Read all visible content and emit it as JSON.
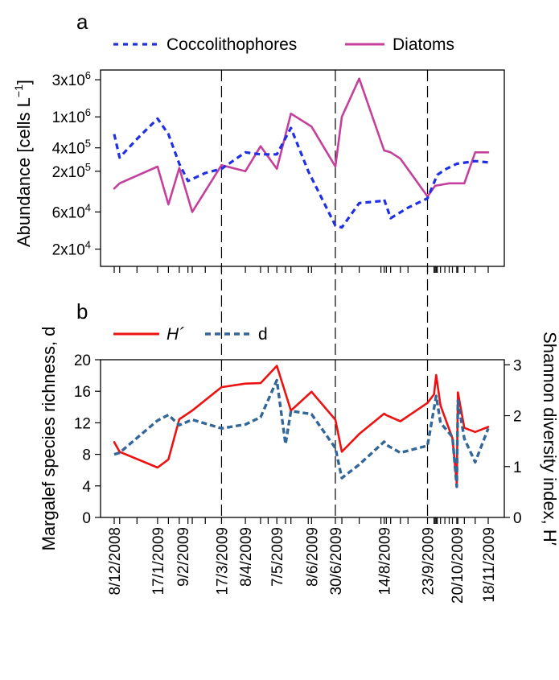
{
  "chart_data": [
    {
      "type": "line",
      "panel_label": "a",
      "ylabel": "Abundance [cells L",
      "ylabel_exponent": "−1",
      "ylabel_close": "]",
      "yscale": "log",
      "yticks": [
        {
          "value": 20000,
          "base": "2x10",
          "exp": "4"
        },
        {
          "value": 60000,
          "base": "6x10",
          "exp": "4"
        },
        {
          "value": 200000,
          "base": "2x10",
          "exp": "5"
        },
        {
          "value": 400000,
          "base": "4x10",
          "exp": "5"
        },
        {
          "value": 1000000,
          "base": "1x10",
          "exp": "6"
        },
        {
          "value": 3000000,
          "base": "3x10",
          "exp": "6"
        }
      ],
      "legend_placement": "top",
      "dashed_dates": [
        "2009-03-17",
        "2009-06-30",
        "2009-09-23"
      ],
      "series": [
        {
          "name": "Coccolithophores",
          "color": "#1f2fe6",
          "style": "dotted",
          "points": [
            [
              "2008-12-08",
              600000
            ],
            [
              "2008-12-13",
              300000
            ],
            [
              "2008-12-29",
              520000
            ],
            [
              "2009-01-17",
              950000
            ],
            [
              "2009-01-27",
              600000
            ],
            [
              "2009-02-06",
              250000
            ],
            [
              "2009-02-14",
              150000
            ],
            [
              "2009-03-02",
              190000
            ],
            [
              "2009-03-17",
              215000
            ],
            [
              "2009-04-08",
              350000
            ],
            [
              "2009-04-22",
              330000
            ],
            [
              "2009-04-29",
              330000
            ],
            [
              "2009-05-07",
              330000
            ],
            [
              "2009-05-20",
              720000
            ],
            [
              "2009-06-05",
              200000
            ],
            [
              "2009-06-30",
              40000
            ],
            [
              "2009-07-06",
              38000
            ],
            [
              "2009-07-22",
              78000
            ],
            [
              "2009-08-11",
              83000
            ],
            [
              "2009-08-14",
              87000
            ],
            [
              "2009-08-20",
              50000
            ],
            [
              "2009-09-05",
              68000
            ],
            [
              "2009-09-23",
              90000
            ],
            [
              "2009-10-02",
              180000
            ],
            [
              "2009-10-09",
              210000
            ],
            [
              "2009-10-20",
              250000
            ],
            [
              "2009-11-06",
              270000
            ],
            [
              "2009-11-18",
              260000
            ]
          ]
        },
        {
          "name": "Diatoms",
          "color": "#c4409c",
          "style": "solid",
          "points": [
            [
              "2008-12-08",
              120000
            ],
            [
              "2008-12-13",
              140000
            ],
            [
              "2009-01-17",
              230000
            ],
            [
              "2009-01-27",
              75000
            ],
            [
              "2009-02-06",
              220000
            ],
            [
              "2009-02-18",
              60000
            ],
            [
              "2009-03-17",
              240000
            ],
            [
              "2009-04-08",
              200000
            ],
            [
              "2009-04-22",
              420000
            ],
            [
              "2009-05-07",
              215000
            ],
            [
              "2009-05-20",
              1100000
            ],
            [
              "2009-06-08",
              750000
            ],
            [
              "2009-06-30",
              230000
            ],
            [
              "2009-07-06",
              1000000
            ],
            [
              "2009-07-22",
              3100000
            ],
            [
              "2009-08-14",
              370000
            ],
            [
              "2009-08-20",
              350000
            ],
            [
              "2009-08-29",
              290000
            ],
            [
              "2009-09-23",
              95000
            ],
            [
              "2009-09-30",
              130000
            ],
            [
              "2009-10-13",
              140000
            ],
            [
              "2009-10-27",
              140000
            ],
            [
              "2009-11-06",
              350000
            ],
            [
              "2009-11-18",
              350000
            ]
          ]
        }
      ]
    },
    {
      "type": "line",
      "panel_label": "b",
      "ylabel": "Margalef species richness, d",
      "ylabel_right": "Shannon diversity index, H′",
      "ylim": [
        0,
        20
      ],
      "yticks": [
        0,
        4,
        8,
        12,
        16,
        20
      ],
      "ylim_right": [
        0,
        3.1
      ],
      "yticks_right": [
        0,
        1,
        2,
        3
      ],
      "legend_placement": "top-left",
      "dashed_dates": [
        "2009-03-17",
        "2009-06-30",
        "2009-09-23"
      ],
      "xticklabels": [
        "8/12/2008",
        "17/1/2009",
        "9/2/2009",
        "17/3/2009",
        "8/4/2009",
        "7/5/2009",
        "8/6/2009",
        "30/6/2009",
        "14/8/2009",
        "23/9/2009",
        "20/10/2009",
        "18/11/2009"
      ],
      "series": [
        {
          "name": "H´",
          "axis": "right",
          "color": "#ee1111",
          "style": "solid",
          "points": [
            [
              "2008-12-08",
              1.48
            ],
            [
              "2008-12-13",
              1.29
            ],
            [
              "2009-01-17",
              0.98
            ],
            [
              "2009-01-27",
              1.14
            ],
            [
              "2009-02-06",
              1.93
            ],
            [
              "2009-02-18",
              2.1
            ],
            [
              "2009-03-17",
              2.56
            ],
            [
              "2009-04-08",
              2.63
            ],
            [
              "2009-04-22",
              2.64
            ],
            [
              "2009-05-07",
              2.98
            ],
            [
              "2009-05-20",
              2.1
            ],
            [
              "2009-06-08",
              2.47
            ],
            [
              "2009-06-30",
              1.92
            ],
            [
              "2009-07-06",
              1.29
            ],
            [
              "2009-07-22",
              1.64
            ],
            [
              "2009-08-14",
              2.04
            ],
            [
              "2009-08-16",
              2.01
            ],
            [
              "2009-08-29",
              1.89
            ],
            [
              "2009-09-23",
              2.25
            ],
            [
              "2009-09-29",
              2.42
            ],
            [
              "2009-10-01",
              2.8
            ],
            [
              "2009-10-05",
              2.2
            ],
            [
              "2009-10-16",
              1.56
            ],
            [
              "2009-10-20",
              0.66
            ],
            [
              "2009-10-21",
              2.46
            ],
            [
              "2009-10-27",
              1.76
            ],
            [
              "2009-11-06",
              1.68
            ],
            [
              "2009-11-18",
              1.78
            ]
          ]
        },
        {
          "name": "d",
          "axis": "left",
          "color": "#336699",
          "style": "dotted",
          "points": [
            [
              "2008-12-08",
              8.0
            ],
            [
              "2008-12-13",
              8.2
            ],
            [
              "2009-01-17",
              12.3
            ],
            [
              "2009-01-27",
              13.0
            ],
            [
              "2009-02-06",
              11.7
            ],
            [
              "2009-02-18",
              12.4
            ],
            [
              "2009-03-17",
              11.3
            ],
            [
              "2009-04-08",
              11.8
            ],
            [
              "2009-04-22",
              12.7
            ],
            [
              "2009-05-07",
              17.4
            ],
            [
              "2009-05-15",
              9.3
            ],
            [
              "2009-05-20",
              13.5
            ],
            [
              "2009-06-08",
              13.1
            ],
            [
              "2009-06-30",
              8.8
            ],
            [
              "2009-07-06",
              5.0
            ],
            [
              "2009-07-22",
              6.7
            ],
            [
              "2009-08-14",
              9.6
            ],
            [
              "2009-08-16",
              9.2
            ],
            [
              "2009-08-29",
              8.2
            ],
            [
              "2009-09-23",
              9.1
            ],
            [
              "2009-10-01",
              15.4
            ],
            [
              "2009-10-05",
              12.0
            ],
            [
              "2009-10-16",
              10.2
            ],
            [
              "2009-10-20",
              3.9
            ],
            [
              "2009-10-21",
              14.8
            ],
            [
              "2009-10-27",
              10.0
            ],
            [
              "2009-11-06",
              7.0
            ],
            [
              "2009-11-18",
              11.3
            ]
          ]
        }
      ]
    }
  ]
}
